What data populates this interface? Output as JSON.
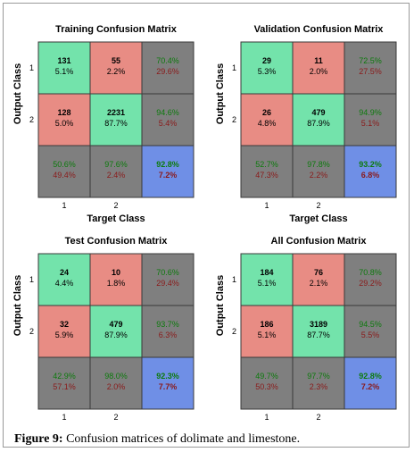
{
  "figure": {
    "caption_label": "Figure 9:",
    "caption_text": " Confusion matrices of dolimate and limestone."
  },
  "colors": {
    "correct": "#73e3ab",
    "incorrect": "#e88c84",
    "summary": "#7f7f7f",
    "overall": "#6f8fe6",
    "pct_correct_text": "#0d7a0d",
    "pct_incorrect_text": "#8a1a1a"
  },
  "chart_data": [
    {
      "type": "table",
      "title": "Training Confusion Matrix",
      "xlabel": "Target Class",
      "ylabel": "Output Class",
      "x_ticks": [
        "1",
        "2"
      ],
      "y_ticks": [
        "1",
        "2"
      ],
      "cells": [
        [
          {
            "count": "131",
            "pct": "5.1%"
          },
          {
            "count": "55",
            "pct": "2.2%"
          },
          {
            "top": "70.4%",
            "bottom": "29.6%"
          }
        ],
        [
          {
            "count": "128",
            "pct": "5.0%"
          },
          {
            "count": "2231",
            "pct": "87.7%"
          },
          {
            "top": "94.6%",
            "bottom": "5.4%"
          }
        ],
        [
          {
            "top": "50.6%",
            "bottom": "49.4%"
          },
          {
            "top": "97.6%",
            "bottom": "2.4%"
          },
          {
            "top": "92.8%",
            "bottom": "7.2%"
          }
        ]
      ]
    },
    {
      "type": "table",
      "title": "Validation Confusion Matrix",
      "xlabel": "Target Class",
      "ylabel": "Output Class",
      "x_ticks": [
        "1",
        "2"
      ],
      "y_ticks": [
        "1",
        "2"
      ],
      "cells": [
        [
          {
            "count": "29",
            "pct": "5.3%"
          },
          {
            "count": "11",
            "pct": "2.0%"
          },
          {
            "top": "72.5%",
            "bottom": "27.5%"
          }
        ],
        [
          {
            "count": "26",
            "pct": "4.8%"
          },
          {
            "count": "479",
            "pct": "87.9%"
          },
          {
            "top": "94.9%",
            "bottom": "5.1%"
          }
        ],
        [
          {
            "top": "52.7%",
            "bottom": "47.3%"
          },
          {
            "top": "97.8%",
            "bottom": "2.2%"
          },
          {
            "top": "93.2%",
            "bottom": "6.8%"
          }
        ]
      ]
    },
    {
      "type": "table",
      "title": "Test Confusion Matrix",
      "xlabel": "Target Class",
      "ylabel": "Output Class",
      "x_ticks": [
        "1",
        "2"
      ],
      "y_ticks": [
        "1",
        "2"
      ],
      "cells": [
        [
          {
            "count": "24",
            "pct": "4.4%"
          },
          {
            "count": "10",
            "pct": "1.8%"
          },
          {
            "top": "70.6%",
            "bottom": "29.4%"
          }
        ],
        [
          {
            "count": "32",
            "pct": "5.9%"
          },
          {
            "count": "479",
            "pct": "87.9%"
          },
          {
            "top": "93.7%",
            "bottom": "6.3%"
          }
        ],
        [
          {
            "top": "42.9%",
            "bottom": "57.1%"
          },
          {
            "top": "98.0%",
            "bottom": "2.0%"
          },
          {
            "top": "92.3%",
            "bottom": "7.7%"
          }
        ]
      ]
    },
    {
      "type": "table",
      "title": "All Confusion Matrix",
      "xlabel": "Target Class",
      "ylabel": "Output Class",
      "x_ticks": [
        "1",
        "2"
      ],
      "y_ticks": [
        "1",
        "2"
      ],
      "cells": [
        [
          {
            "count": "184",
            "pct": "5.1%"
          },
          {
            "count": "76",
            "pct": "2.1%"
          },
          {
            "top": "70.8%",
            "bottom": "29.2%"
          }
        ],
        [
          {
            "count": "186",
            "pct": "5.1%"
          },
          {
            "count": "3189",
            "pct": "87.7%"
          },
          {
            "top": "94.5%",
            "bottom": "5.5%"
          }
        ],
        [
          {
            "top": "49.7%",
            "bottom": "50.3%"
          },
          {
            "top": "97.7%",
            "bottom": "2.3%"
          },
          {
            "top": "92.8%",
            "bottom": "7.2%"
          }
        ]
      ]
    }
  ]
}
